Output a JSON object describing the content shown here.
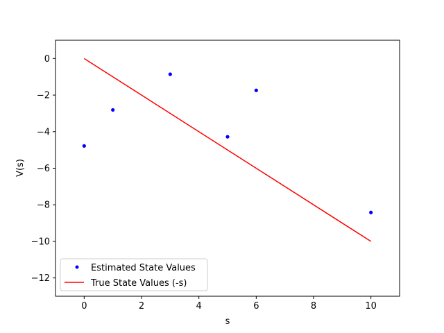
{
  "chart_data": {
    "type": "scatter",
    "title": "",
    "xlabel": "s",
    "ylabel": "V(s)",
    "xlim": [
      -1,
      11
    ],
    "ylim": [
      -13,
      1
    ],
    "xticks": [
      0,
      2,
      4,
      6,
      8,
      10
    ],
    "yticks": [
      0,
      -2,
      -4,
      -6,
      -8,
      -10,
      -12
    ],
    "grid": false,
    "legend_position": "lower-left",
    "series": [
      {
        "name": "Estimated State Values",
        "kind": "scatter",
        "color": "#0000ff",
        "points": [
          {
            "x": 0,
            "y": -4.78
          },
          {
            "x": 1,
            "y": -2.81
          },
          {
            "x": 3,
            "y": -0.86
          },
          {
            "x": 5,
            "y": -4.28
          },
          {
            "x": 6,
            "y": -1.74
          },
          {
            "x": 10,
            "y": -8.42
          }
        ]
      },
      {
        "name": "True State Values (-s)",
        "kind": "line",
        "color": "#ff0000",
        "points": [
          {
            "x": 0,
            "y": 0
          },
          {
            "x": 10,
            "y": -10
          }
        ]
      }
    ]
  }
}
